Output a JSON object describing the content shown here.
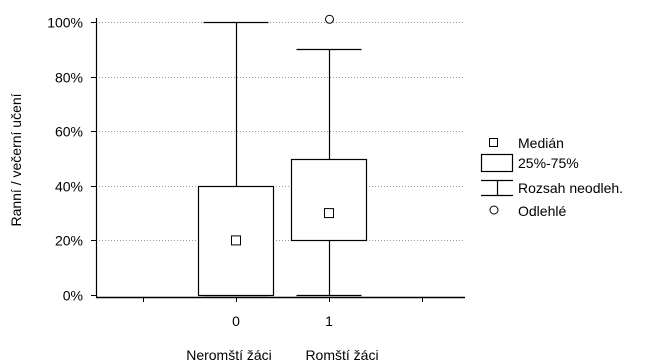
{
  "chart_data": {
    "type": "boxplot",
    "ylabel": "Ranní / večerní učení",
    "ylim": [
      0,
      100
    ],
    "y_ticks": [
      "0%",
      "20%",
      "40%",
      "60%",
      "80%",
      "100%"
    ],
    "y_tick_values": [
      0,
      20,
      40,
      60,
      80,
      100
    ],
    "grid": "horizontal dotted",
    "categories": [
      "0",
      "1"
    ],
    "group_labels": [
      "Neromští žáci",
      "Romští žáci"
    ],
    "boxes": [
      {
        "category": "0",
        "group": "Neromští žáci",
        "median": 20,
        "q1": 0,
        "q3": 40,
        "whisker_low": 0,
        "whisker_high": 100,
        "outliers": []
      },
      {
        "category": "1",
        "group": "Romští žáci",
        "median": 30,
        "q1": 20,
        "q3": 50,
        "whisker_low": 0,
        "whisker_high": 90,
        "outliers": [
          101
        ]
      }
    ],
    "legend": {
      "position": "right",
      "entries": [
        {
          "symbol": "square-marker",
          "label": "Medián"
        },
        {
          "symbol": "box",
          "label": "25%-75%"
        },
        {
          "symbol": "whisker",
          "label": "Rozsah neodleh."
        },
        {
          "symbol": "circle-marker",
          "label": "Odlehlé"
        }
      ]
    }
  }
}
